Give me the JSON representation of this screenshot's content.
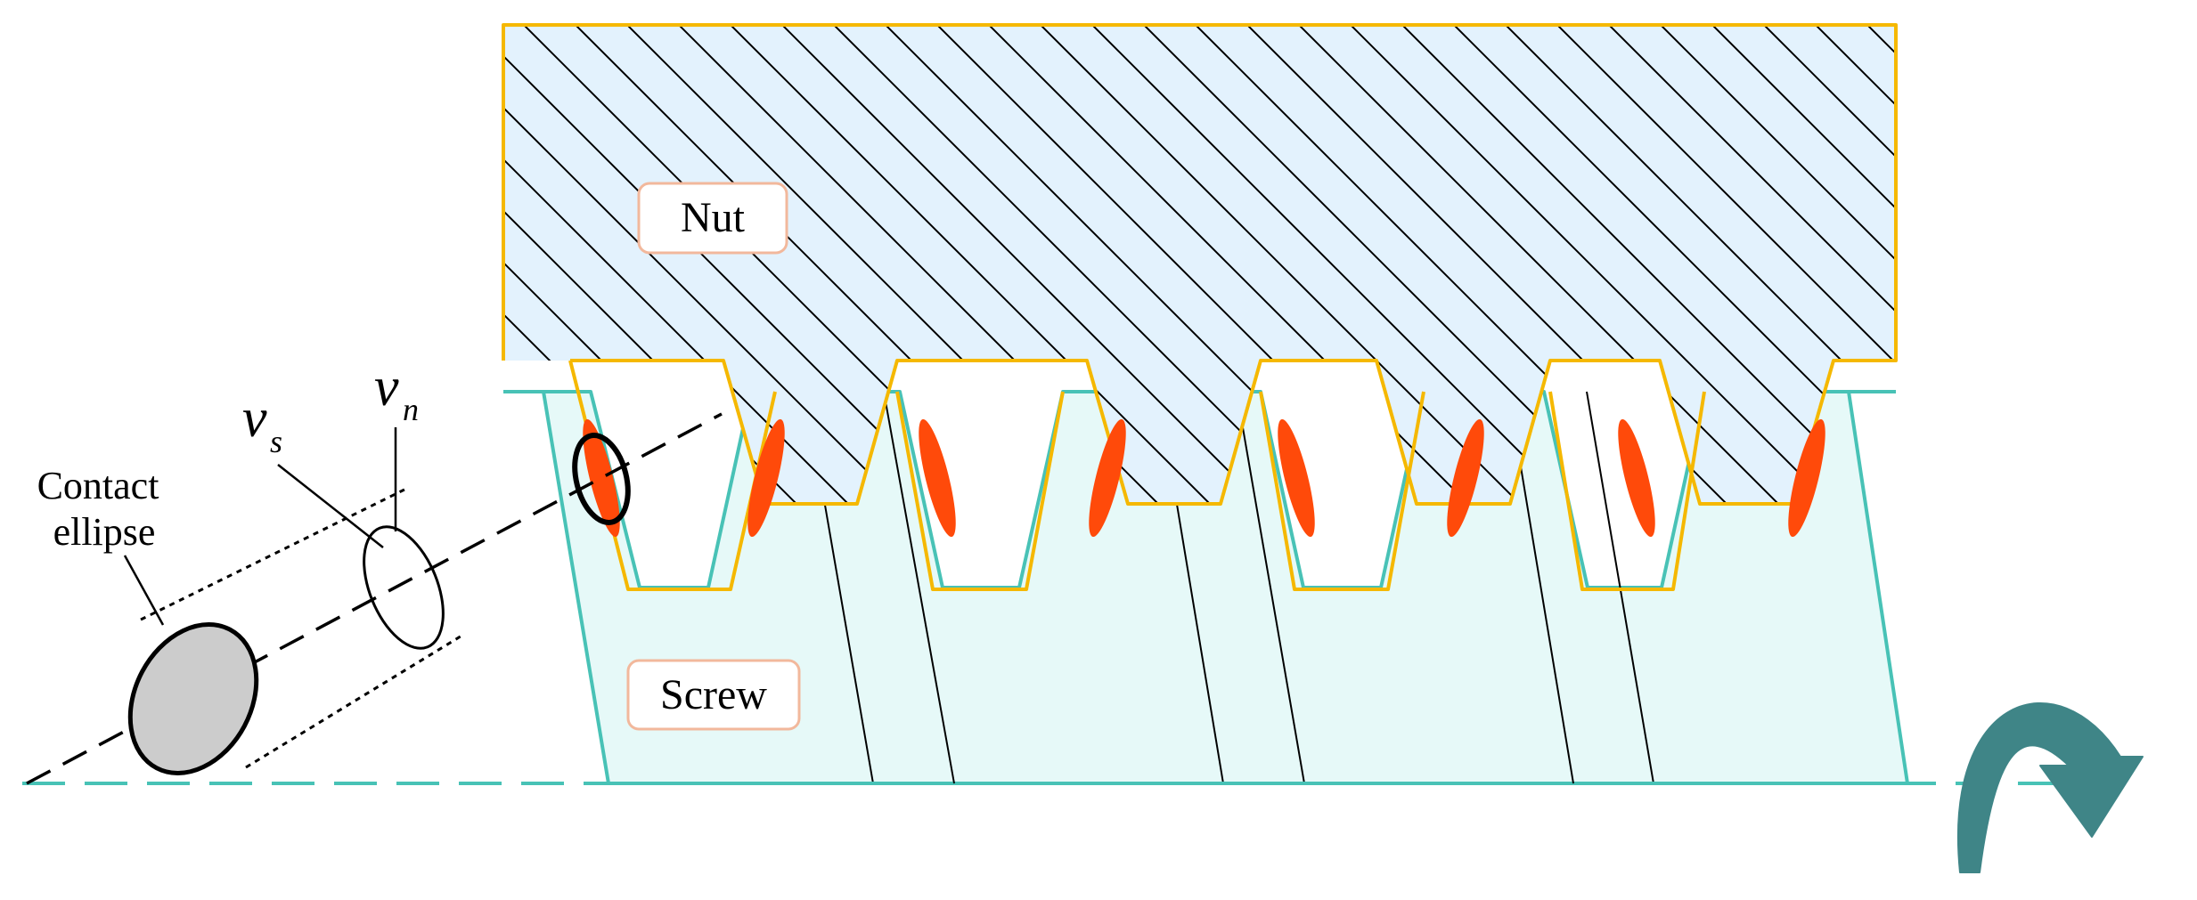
{
  "labels": {
    "nut": "Nut",
    "screw": "Screw",
    "contact_ellipse_line1": "Contact",
    "contact_ellipse_line2": "ellipse",
    "v_s_base": "v",
    "v_s_sub": "s",
    "v_n_base": "v",
    "v_n_sub": "n"
  },
  "colors": {
    "nut_fill": "#e3f2fd",
    "nut_stroke": "#f5b800",
    "screw_fill": "#e6f9f8",
    "screw_stroke": "#48c2b6",
    "contact_fill": "#ff4a0a",
    "label_box_stroke": "#f2b89c",
    "arrow_fill": "#3f8587",
    "ellipse_fill": "#cccccc"
  },
  "icons": {
    "rotation": "curved-rotation-arrow-icon"
  }
}
